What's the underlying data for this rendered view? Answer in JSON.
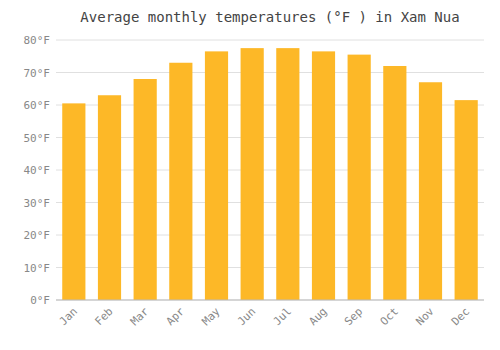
{
  "chart_data": {
    "type": "bar",
    "title": "Average monthly temperatures (°F ) in Xam Nua",
    "categories": [
      "Jan",
      "Feb",
      "Mar",
      "Apr",
      "May",
      "Jun",
      "Jul",
      "Aug",
      "Sep",
      "Oct",
      "Nov",
      "Dec"
    ],
    "values": [
      60.5,
      63.0,
      68.0,
      73.0,
      76.5,
      77.5,
      77.5,
      76.5,
      75.5,
      72.0,
      67.0,
      61.5
    ],
    "color": "#FDB827",
    "ylim": [
      0,
      80
    ],
    "yticks": [
      {
        "value": 0,
        "label": "0°F"
      },
      {
        "value": 10,
        "label": "10°F"
      },
      {
        "value": 20,
        "label": "20°F"
      },
      {
        "value": 30,
        "label": "30°F"
      },
      {
        "value": 40,
        "label": "40°F"
      },
      {
        "value": 50,
        "label": "50°F"
      },
      {
        "value": 60,
        "label": "60°F"
      },
      {
        "value": 70,
        "label": "70°F"
      },
      {
        "value": 80,
        "label": "80°F"
      }
    ],
    "grid": true
  }
}
